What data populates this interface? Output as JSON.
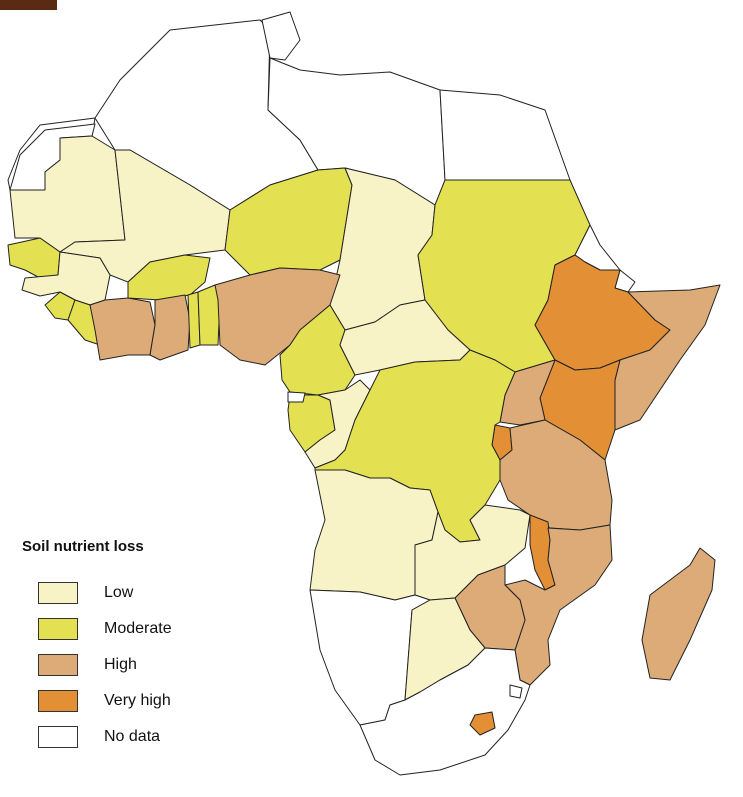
{
  "legend": {
    "title": "Soil nutrient loss",
    "items": [
      {
        "key": "low",
        "label": "Low",
        "color": "#f8f3c6"
      },
      {
        "key": "moderate",
        "label": "Moderate",
        "color": "#e3e052"
      },
      {
        "key": "high",
        "label": "High",
        "color": "#dcab78"
      },
      {
        "key": "very-high",
        "label": "Very high",
        "color": "#e38f35"
      },
      {
        "key": "no-data",
        "label": "No data",
        "color": "#ffffff"
      }
    ]
  },
  "map": {
    "colors": {
      "low": "#f8f3c6",
      "moderate": "#e3e052",
      "high": "#dcab78",
      "very_high": "#e38f35",
      "no_data": "#ffffff",
      "outline": "#222222",
      "corner_tab": "#5a2a13"
    },
    "regions": [
      {
        "name": "Morocco",
        "category": "no_data"
      },
      {
        "name": "Western Sahara",
        "category": "no_data"
      },
      {
        "name": "Algeria",
        "category": "no_data"
      },
      {
        "name": "Tunisia",
        "category": "no_data"
      },
      {
        "name": "Libya",
        "category": "no_data"
      },
      {
        "name": "Egypt",
        "category": "no_data"
      },
      {
        "name": "Mauritania",
        "category": "low"
      },
      {
        "name": "Mali",
        "category": "low"
      },
      {
        "name": "Niger",
        "category": "moderate"
      },
      {
        "name": "Chad",
        "category": "low"
      },
      {
        "name": "Sudan",
        "category": "moderate"
      },
      {
        "name": "Senegal",
        "category": "moderate"
      },
      {
        "name": "Guinea",
        "category": "low"
      },
      {
        "name": "Sierra Leone",
        "category": "moderate"
      },
      {
        "name": "Liberia",
        "category": "moderate"
      },
      {
        "name": "Cote d'Ivoire",
        "category": "high"
      },
      {
        "name": "Burkina Faso",
        "category": "moderate"
      },
      {
        "name": "Ghana",
        "category": "high"
      },
      {
        "name": "Togo",
        "category": "moderate"
      },
      {
        "name": "Benin",
        "category": "moderate"
      },
      {
        "name": "Nigeria",
        "category": "high"
      },
      {
        "name": "Cameroon",
        "category": "moderate"
      },
      {
        "name": "Central African Republic",
        "category": "low"
      },
      {
        "name": "Ethiopia",
        "category": "very_high"
      },
      {
        "name": "Eritrea",
        "category": "no_data"
      },
      {
        "name": "Djibouti",
        "category": "no_data"
      },
      {
        "name": "Somalia",
        "category": "high"
      },
      {
        "name": "Kenya",
        "category": "very_high"
      },
      {
        "name": "Uganda",
        "category": "high"
      },
      {
        "name": "Rwanda",
        "category": "very_high"
      },
      {
        "name": "Tanzania",
        "category": "high"
      },
      {
        "name": "Gabon",
        "category": "moderate"
      },
      {
        "name": "Equatorial Guinea",
        "category": "no_data"
      },
      {
        "name": "Republic of Congo",
        "category": "low"
      },
      {
        "name": "DR Congo",
        "category": "moderate"
      },
      {
        "name": "Angola",
        "category": "low"
      },
      {
        "name": "Zambia",
        "category": "low"
      },
      {
        "name": "Malawi",
        "category": "very_high"
      },
      {
        "name": "Mozambique",
        "category": "high"
      },
      {
        "name": "Zimbabwe",
        "category": "high"
      },
      {
        "name": "Namibia",
        "category": "no_data"
      },
      {
        "name": "Botswana",
        "category": "low"
      },
      {
        "name": "South Africa",
        "category": "no_data"
      },
      {
        "name": "Lesotho",
        "category": "very_high"
      },
      {
        "name": "Eswatini",
        "category": "no_data"
      },
      {
        "name": "Madagascar",
        "category": "high"
      }
    ]
  }
}
